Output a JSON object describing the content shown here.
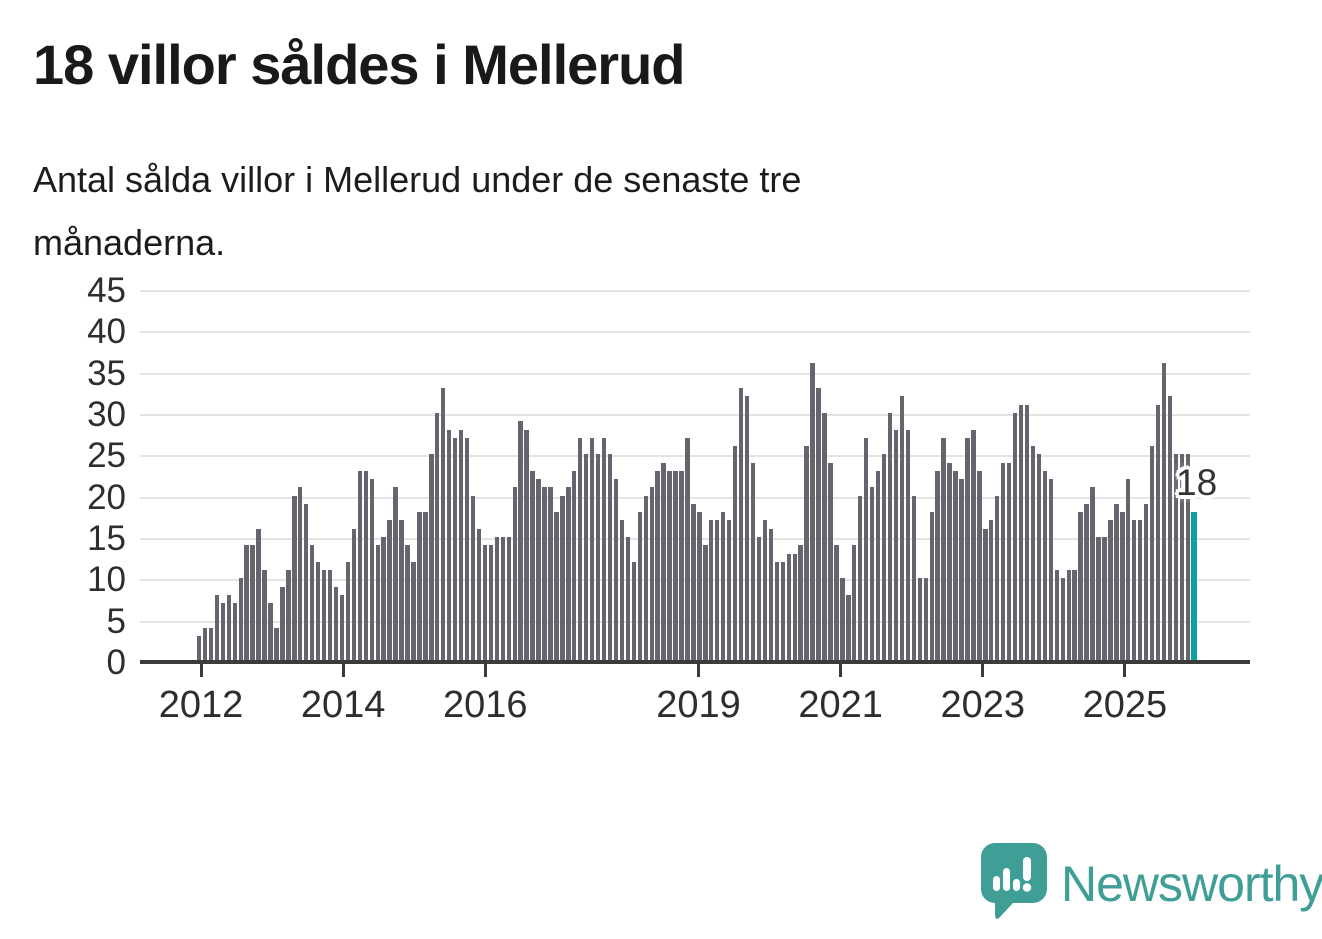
{
  "header": {
    "title": "18 villor såldes i Mellerud",
    "subtitle_line1": "Antal sålda villor i Mellerud under de senaste tre",
    "subtitle_line2": "månaderna."
  },
  "annotation": {
    "label": "18"
  },
  "footer": {
    "brand": "Newsworthy"
  },
  "colors": {
    "bar": "#65656d",
    "highlight": "#0ba1a0",
    "gridline": "#e4e4e4",
    "axis": "#3b3b3b",
    "brand_teal": "#3f9e96",
    "text": "#1c1c1c"
  },
  "chart_data": {
    "type": "bar",
    "title": "18 villor såldes i Mellerud",
    "xlabel": "",
    "ylabel": "",
    "ylim": [
      0,
      45
    ],
    "yticks": [
      0,
      5,
      10,
      15,
      20,
      25,
      30,
      35,
      40,
      45
    ],
    "xticks": [
      "2012",
      "2014",
      "2016",
      "2019",
      "2021",
      "2023",
      "2025"
    ],
    "grid": true,
    "legend": false,
    "frequency": "monthly",
    "x_start_year": 2012,
    "bars_per_year": 12,
    "highlight_index": 167,
    "highlight_value": 18,
    "values": [
      3,
      4,
      4,
      8,
      7,
      8,
      7,
      10,
      14,
      14,
      16,
      11,
      7,
      4,
      9,
      11,
      20,
      21,
      19,
      14,
      12,
      11,
      11,
      9,
      8,
      12,
      16,
      23,
      23,
      22,
      14,
      15,
      17,
      21,
      17,
      14,
      12,
      18,
      18,
      25,
      30,
      33,
      28,
      27,
      28,
      27,
      20,
      16,
      14,
      14,
      15,
      15,
      15,
      21,
      29,
      28,
      23,
      22,
      21,
      21,
      18,
      20,
      21,
      23,
      27,
      25,
      27,
      25,
      27,
      25,
      22,
      17,
      15,
      12,
      18,
      20,
      21,
      23,
      24,
      23,
      23,
      23,
      27,
      19,
      18,
      14,
      17,
      17,
      18,
      17,
      26,
      33,
      32,
      24,
      15,
      17,
      16,
      12,
      12,
      13,
      13,
      14,
      26,
      36,
      33,
      30,
      24,
      14,
      10,
      8,
      14,
      20,
      27,
      21,
      23,
      25,
      30,
      28,
      32,
      28,
      20,
      10,
      10,
      18,
      23,
      27,
      24,
      23,
      22,
      27,
      28,
      23,
      16,
      17,
      20,
      24,
      24,
      30,
      31,
      31,
      26,
      25,
      23,
      22,
      11,
      10,
      11,
      11,
      18,
      19,
      21,
      15,
      15,
      17,
      19,
      18,
      22,
      17,
      17,
      19,
      26,
      31,
      36,
      32,
      25,
      25,
      25,
      18
    ]
  }
}
